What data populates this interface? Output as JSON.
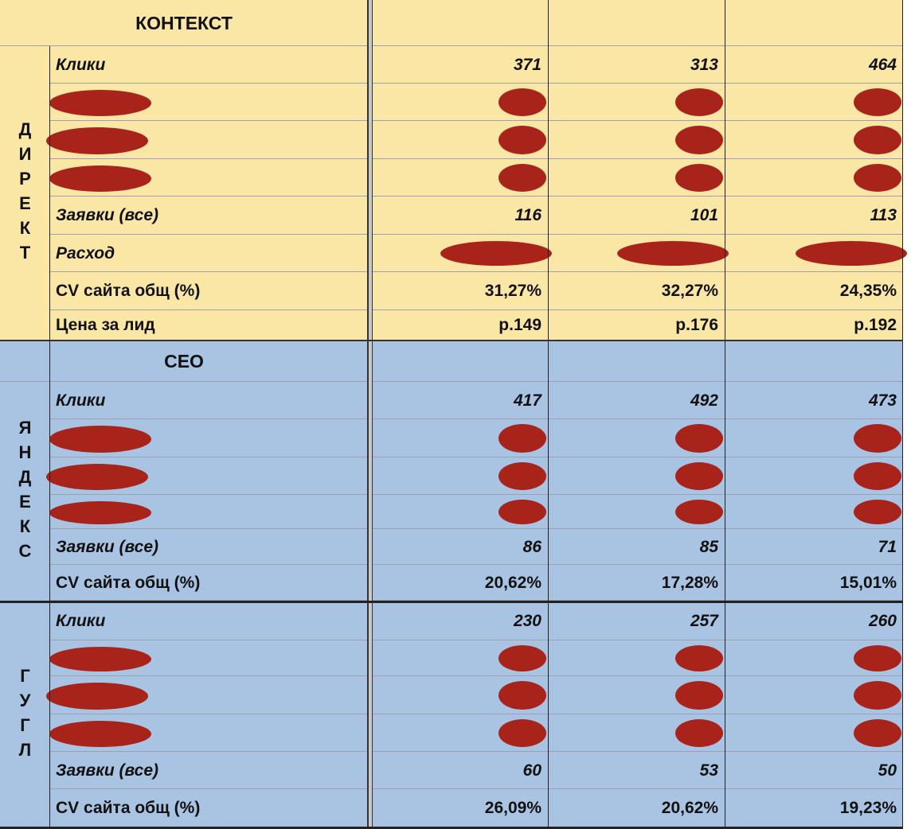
{
  "header": {
    "title": "КОНТЕКСТ"
  },
  "sections": [
    {
      "group": "ДИРЕКТ",
      "rows": [
        {
          "label": "Клики",
          "values": [
            371,
            313,
            464
          ]
        },
        {
          "label": "Заявки (все)",
          "values": [
            116,
            101,
            113
          ]
        },
        {
          "label": "Расход"
        },
        {
          "label": "CV сайта общ (%)",
          "values": [
            "31,27%",
            "32,27%",
            "24,35%"
          ]
        },
        {
          "label": "Цена за лид",
          "values": [
            "р.149",
            "р.176",
            "р.192"
          ]
        }
      ]
    },
    {
      "title": "СЕО",
      "group": "ЯНДЕКС",
      "rows": [
        {
          "label": "Клики",
          "values": [
            417,
            492,
            473
          ]
        },
        {
          "label": "Заявки (все)",
          "values": [
            86,
            85,
            71
          ]
        },
        {
          "label": "CV сайта общ (%)",
          "values": [
            "20,62%",
            "17,28%",
            "15,01%"
          ]
        }
      ]
    },
    {
      "group": "ГУГЛ",
      "rows": [
        {
          "label": "Клики",
          "values": [
            230,
            257,
            260
          ]
        },
        {
          "label": "Заявки (все)",
          "values": [
            60,
            53,
            50
          ]
        },
        {
          "label": "CV сайта общ (%)",
          "values": [
            "26,09%",
            "20,62%",
            "19,23%"
          ]
        }
      ]
    }
  ]
}
